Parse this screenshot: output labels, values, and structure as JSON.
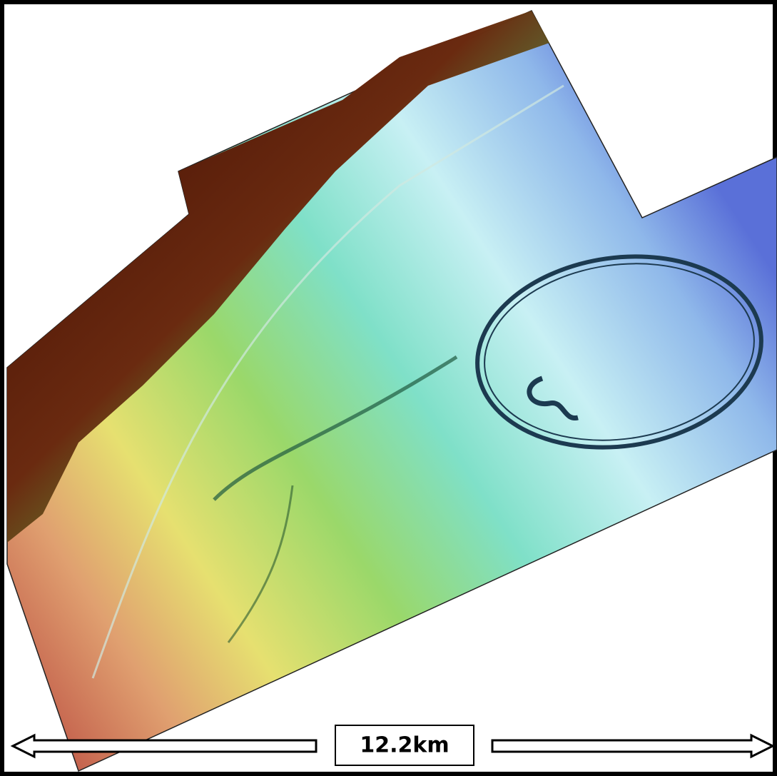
{
  "scale_bar": {
    "label": "12.2km"
  }
}
